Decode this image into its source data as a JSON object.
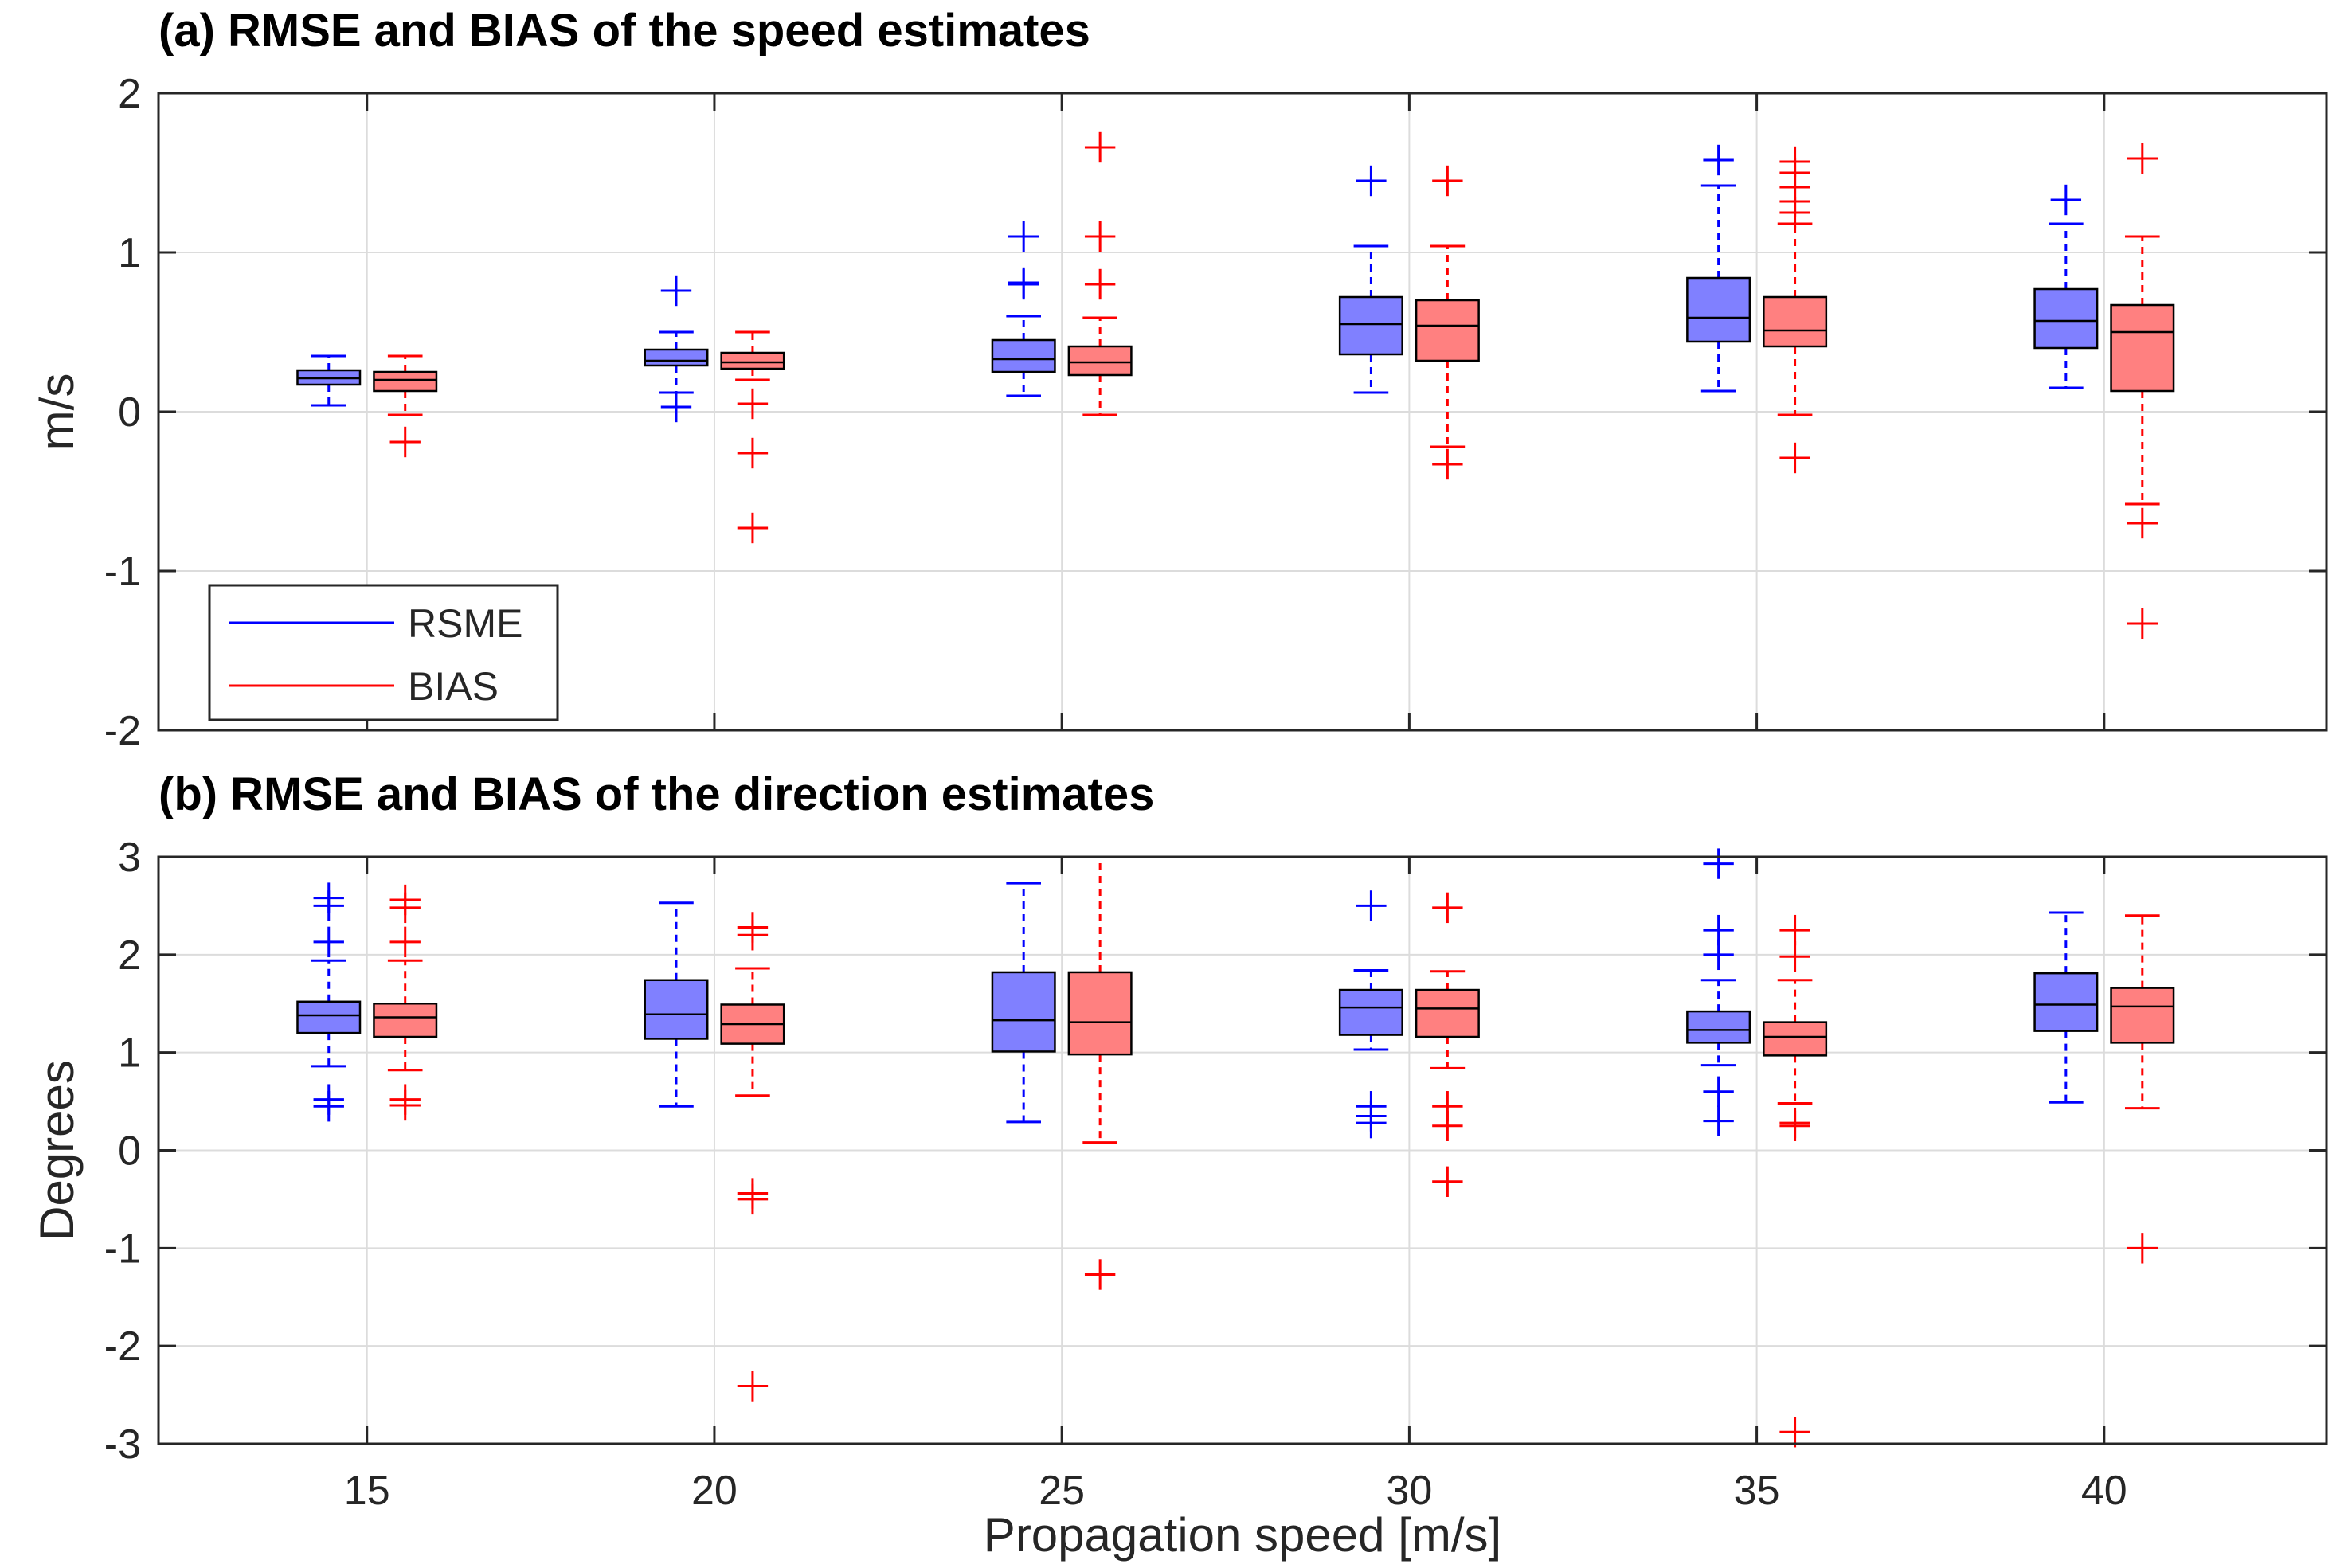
{
  "chart_data": {
    "type": "box",
    "xlabel": "Propagation speed [m/s]",
    "x_categories": [
      "15",
      "20",
      "25",
      "30",
      "35",
      "40"
    ],
    "xlim": [
      12,
      43.2
    ],
    "legend": {
      "placement": "lower-left (top panel)",
      "entries": [
        {
          "name": "RSME",
          "color": "#0000ff"
        },
        {
          "name": "BIAS",
          "color": "#ff0000"
        }
      ]
    },
    "colors": {
      "RSME_fill": "#8080ff",
      "BIAS_fill": "#ff8080",
      "RSME_line": "#0000ff",
      "BIAS_line": "#ff0000"
    },
    "panels": [
      {
        "title": "(a) RMSE and BIAS of the speed estimates",
        "ylabel": "m/s",
        "ylim": [
          -2,
          2
        ],
        "yticks": [
          "-2",
          "-1",
          "0",
          "1",
          "2"
        ],
        "grid": true,
        "series": [
          {
            "name": "RSME",
            "boxes": [
              {
                "x": 15,
                "q1": 0.17,
                "median": 0.21,
                "q3": 0.26,
                "whisker_low": 0.04,
                "whisker_high": 0.35,
                "outliers": []
              },
              {
                "x": 20,
                "q1": 0.29,
                "median": 0.32,
                "q3": 0.39,
                "whisker_low": 0.12,
                "whisker_high": 0.5,
                "outliers": [
                  0.03,
                  0.76
                ]
              },
              {
                "x": 25,
                "q1": 0.25,
                "median": 0.33,
                "q3": 0.45,
                "whisker_low": 0.1,
                "whisker_high": 0.6,
                "outliers": [
                  0.8,
                  0.81,
                  1.1
                ]
              },
              {
                "x": 30,
                "q1": 0.36,
                "median": 0.55,
                "q3": 0.72,
                "whisker_low": 0.12,
                "whisker_high": 1.04,
                "outliers": [
                  1.45
                ]
              },
              {
                "x": 35,
                "q1": 0.44,
                "median": 0.59,
                "q3": 0.84,
                "whisker_low": 0.13,
                "whisker_high": 1.42,
                "outliers": [
                  1.58
                ]
              },
              {
                "x": 40,
                "q1": 0.4,
                "median": 0.57,
                "q3": 0.77,
                "whisker_low": 0.15,
                "whisker_high": 1.18,
                "outliers": [
                  1.33
                ]
              }
            ]
          },
          {
            "name": "BIAS",
            "boxes": [
              {
                "x": 15,
                "q1": 0.13,
                "median": 0.2,
                "q3": 0.25,
                "whisker_low": -0.02,
                "whisker_high": 0.35,
                "outliers": [
                  -0.19
                ]
              },
              {
                "x": 20,
                "q1": 0.27,
                "median": 0.31,
                "q3": 0.37,
                "whisker_low": 0.2,
                "whisker_high": 0.5,
                "outliers": [
                  0.05,
                  -0.26,
                  -0.73
                ]
              },
              {
                "x": 25,
                "q1": 0.23,
                "median": 0.31,
                "q3": 0.41,
                "whisker_low": -0.02,
                "whisker_high": 0.59,
                "outliers": [
                  0.8,
                  1.1,
                  1.66
                ]
              },
              {
                "x": 30,
                "q1": 0.32,
                "median": 0.54,
                "q3": 0.7,
                "whisker_low": -0.22,
                "whisker_high": 1.04,
                "outliers": [
                  -0.33,
                  1.45
                ]
              },
              {
                "x": 35,
                "q1": 0.41,
                "median": 0.51,
                "q3": 0.72,
                "whisker_low": -0.02,
                "whisker_high": 1.18,
                "outliers": [
                  -0.29,
                  1.25,
                  1.32,
                  1.41,
                  1.5,
                  1.57
                ]
              },
              {
                "x": 40,
                "q1": 0.13,
                "median": 0.5,
                "q3": 0.67,
                "whisker_low": -0.58,
                "whisker_high": 1.1,
                "outliers": [
                  -0.7,
                  -1.33,
                  1.59
                ]
              }
            ]
          }
        ]
      },
      {
        "title": "(b) RMSE and BIAS of the direction estimates",
        "ylabel": "Degrees",
        "ylim": [
          -3,
          3
        ],
        "yticks": [
          "-3",
          "-2",
          "-1",
          "0",
          "1",
          "2",
          "3"
        ],
        "grid": true,
        "series": [
          {
            "name": "RSME",
            "boxes": [
              {
                "x": 15,
                "q1": 1.2,
                "median": 1.38,
                "q3": 1.52,
                "whisker_low": 0.86,
                "whisker_high": 1.94,
                "outliers": [
                  0.45,
                  0.52,
                  2.13,
                  2.5,
                  2.58
                ]
              },
              {
                "x": 20,
                "q1": 1.14,
                "median": 1.39,
                "q3": 1.74,
                "whisker_low": 0.45,
                "whisker_high": 2.53,
                "outliers": []
              },
              {
                "x": 25,
                "q1": 1.01,
                "median": 1.33,
                "q3": 1.82,
                "whisker_low": 0.29,
                "whisker_high": 2.73,
                "outliers": []
              },
              {
                "x": 30,
                "q1": 1.18,
                "median": 1.46,
                "q3": 1.64,
                "whisker_low": 1.03,
                "whisker_high": 1.84,
                "outliers": [
                  0.28,
                  0.35,
                  0.45,
                  2.5
                ]
              },
              {
                "x": 35,
                "q1": 1.1,
                "median": 1.23,
                "q3": 1.42,
                "whisker_low": 0.87,
                "whisker_high": 1.74,
                "outliers": [
                  0.3,
                  0.6,
                  2.0,
                  2.25,
                  2.93
                ]
              },
              {
                "x": 40,
                "q1": 1.22,
                "median": 1.49,
                "q3": 1.81,
                "whisker_low": 0.49,
                "whisker_high": 2.43,
                "outliers": []
              }
            ]
          },
          {
            "name": "BIAS",
            "boxes": [
              {
                "x": 15,
                "q1": 1.16,
                "median": 1.36,
                "q3": 1.5,
                "whisker_low": 0.82,
                "whisker_high": 1.94,
                "outliers": [
                  0.46,
                  0.52,
                  2.13,
                  2.48,
                  2.56
                ]
              },
              {
                "x": 20,
                "q1": 1.09,
                "median": 1.29,
                "q3": 1.49,
                "whisker_low": 0.56,
                "whisker_high": 1.86,
                "outliers": [
                  -0.44,
                  -0.5,
                  -2.41,
                  2.2,
                  2.28
                ]
              },
              {
                "x": 25,
                "q1": 0.98,
                "median": 1.31,
                "q3": 1.82,
                "whisker_low": 0.08,
                "whisker_high": 3.0,
                "outliers": [
                  -1.27
                ]
              },
              {
                "x": 30,
                "q1": 1.16,
                "median": 1.45,
                "q3": 1.64,
                "whisker_low": 0.84,
                "whisker_high": 1.83,
                "outliers": [
                  -0.32,
                  0.25,
                  0.45,
                  2.48
                ]
              },
              {
                "x": 35,
                "q1": 0.97,
                "median": 1.16,
                "q3": 1.31,
                "whisker_low": 0.48,
                "whisker_high": 1.74,
                "outliers": [
                  0.25,
                  0.28,
                  1.98,
                  2.25,
                  -2.88
                ]
              },
              {
                "x": 40,
                "q1": 1.1,
                "median": 1.47,
                "q3": 1.66,
                "whisker_low": 0.43,
                "whisker_high": 2.4,
                "outliers": [
                  -1.0
                ]
              }
            ]
          }
        ]
      }
    ]
  }
}
